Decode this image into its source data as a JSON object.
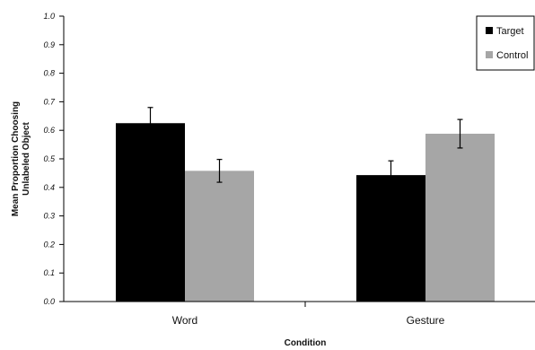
{
  "chart_data": {
    "type": "bar",
    "categories": [
      "Word",
      "Gesture"
    ],
    "series": [
      {
        "name": "Target",
        "color": "#000000",
        "values": [
          0.625,
          0.443
        ],
        "errors": [
          0.055,
          0.05
        ]
      },
      {
        "name": "Control",
        "color": "#a6a6a6",
        "values": [
          0.458,
          0.588
        ],
        "errors": [
          0.04,
          0.05
        ]
      }
    ],
    "ylim": [
      0,
      1.0
    ],
    "yticks": [
      "0.0",
      "0.1",
      "0.2",
      "0.3",
      "0.4",
      "0.5",
      "0.6",
      "0.7",
      "0.8",
      "0.9",
      "1.0"
    ],
    "ytick_values": [
      0,
      0.1,
      0.2,
      0.3,
      0.4,
      0.5,
      0.6,
      0.7,
      0.8,
      0.9,
      1.0
    ],
    "xlabel": "Condition",
    "ylabel": [
      "Mean Proportion Choosing",
      "Unlabeled Object"
    ],
    "legend": "top-right",
    "grid": false
  }
}
